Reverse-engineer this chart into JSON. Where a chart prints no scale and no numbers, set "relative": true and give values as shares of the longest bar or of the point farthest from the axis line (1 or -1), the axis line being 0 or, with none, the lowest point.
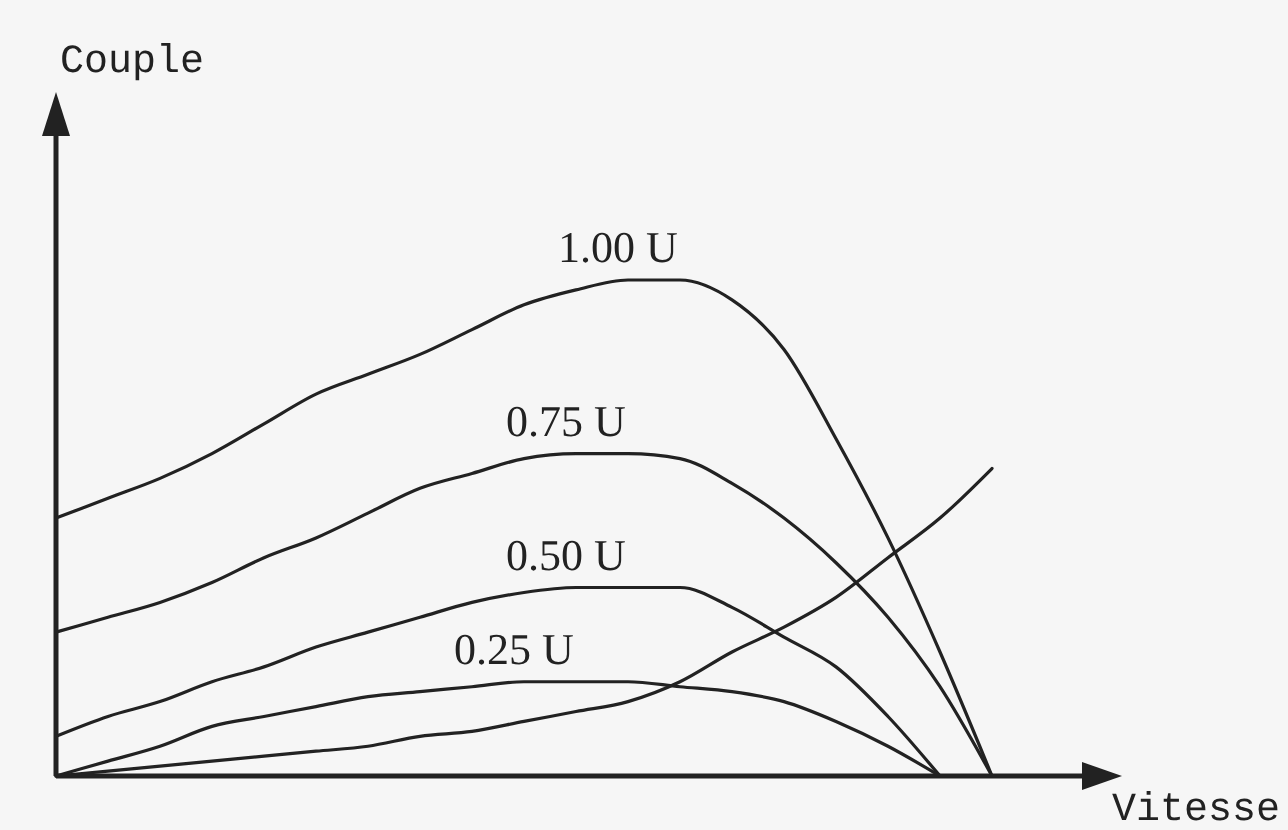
{
  "chart_data": {
    "type": "line",
    "relative": true,
    "xlabel": "Vitesse",
    "ylabel": "Couple",
    "marker": "none",
    "line_style": "solid",
    "categories": [
      null,
      null,
      null,
      null,
      null,
      null,
      null,
      null,
      null,
      null,
      null,
      null,
      null,
      null,
      null,
      null,
      null,
      null,
      null,
      null,
      null
    ],
    "series": [
      {
        "name": "1.00 U",
        "color": "#222222",
        "values": [
          0.52,
          0.56,
          0.6,
          0.65,
          0.71,
          0.77,
          0.81,
          0.85,
          0.9,
          0.95,
          0.98,
          1.0,
          1.0,
          0.96,
          0.86,
          0.68,
          0.48,
          0.25,
          0,
          null,
          null
        ]
      },
      {
        "name": "0.75 U",
        "color": "#222222",
        "values": [
          0.29,
          0.32,
          0.35,
          0.39,
          0.44,
          0.48,
          0.53,
          0.58,
          0.61,
          0.64,
          0.65,
          0.65,
          0.64,
          0.59,
          0.52,
          0.43,
          0.32,
          0.18,
          0,
          null,
          null
        ]
      },
      {
        "name": "0.50 U",
        "color": "#222222",
        "values": [
          0.08,
          0.12,
          0.15,
          0.19,
          0.22,
          0.26,
          0.29,
          0.32,
          0.35,
          0.37,
          0.38,
          0.38,
          0.38,
          0.34,
          0.28,
          0.22,
          0.12,
          0,
          null,
          null,
          null
        ]
      },
      {
        "name": "0.25 U",
        "color": "#222222",
        "values": [
          0,
          0.03,
          0.06,
          0.1,
          0.12,
          0.14,
          0.16,
          0.17,
          0.18,
          0.19,
          0.19,
          0.19,
          0.18,
          0.17,
          0.15,
          0.11,
          0.06,
          0,
          null,
          null,
          null
        ]
      },
      {
        "color": "#222222",
        "values": [
          0,
          0.01,
          0.02,
          0.03,
          0.04,
          0.05,
          0.06,
          0.08,
          0.09,
          0.11,
          0.13,
          0.15,
          0.19,
          0.25,
          0.3,
          0.36,
          0.44,
          0.52,
          0.62,
          null,
          null
        ]
      }
    ]
  }
}
